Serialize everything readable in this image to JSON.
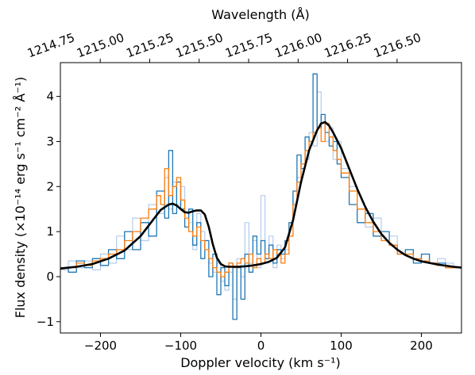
{
  "chart_data": {
    "type": "line",
    "xlabel": "Doppler velocity (km s⁻¹)",
    "ylabel": "Flux density (×10⁻¹⁴ erg s⁻¹ cm⁻² Å⁻¹)",
    "top_xlabel": "Wavelength (Å)",
    "xlim": [
      -250,
      250
    ],
    "ylim": [
      -1.25,
      4.75
    ],
    "xticks": [
      -200,
      -100,
      0,
      100,
      200
    ],
    "xtick_labels": [
      "−200",
      "−100",
      "0",
      "100",
      "200"
    ],
    "yticks": [
      -1,
      0,
      1,
      2,
      3,
      4
    ],
    "ytick_labels": [
      "−1",
      "0",
      "1",
      "2",
      "3",
      "4"
    ],
    "top_xticks": [
      -262.0,
      -200.3,
      -138.7,
      -77.0,
      -15.3,
      46.4,
      108.0,
      169.7
    ],
    "top_xtick_labels": [
      "1214.75",
      "1215.00",
      "1215.25",
      "1215.50",
      "1215.75",
      "1216.00",
      "1216.25",
      "1216.50"
    ],
    "grid": false,
    "legend": "none",
    "series": [
      {
        "color": "#aec7e8",
        "style": "steps-light",
        "x": [
          -250,
          -240,
          -230,
          -220,
          -210,
          -200,
          -190,
          -180,
          -170,
          -160,
          -150,
          -140,
          -130,
          -120,
          -115,
          -110,
          -105,
          -100,
          -95,
          -90,
          -85,
          -80,
          -75,
          -70,
          -65,
          -60,
          -55,
          -50,
          -45,
          -40,
          -35,
          -30,
          -25,
          -20,
          -15,
          -10,
          -5,
          0,
          5,
          10,
          15,
          20,
          25,
          30,
          35,
          40,
          45,
          50,
          55,
          60,
          65,
          70,
          75,
          80,
          85,
          90,
          95,
          100,
          110,
          120,
          130,
          140,
          150,
          160,
          170,
          180,
          190,
          200,
          210,
          220,
          230,
          240,
          250
        ],
        "y": [
          0.15,
          0.35,
          0.2,
          0.35,
          0.15,
          0.5,
          0.3,
          0.9,
          0.6,
          1.3,
          0.8,
          1.6,
          1.4,
          2.2,
          1.5,
          2.1,
          1.6,
          2.0,
          1.1,
          1.2,
          0.6,
          1.4,
          1.0,
          0.8,
          0.3,
          0.1,
          0.3,
          -0.1,
          -0.3,
          0.1,
          -0.5,
          0.4,
          0.0,
          1.2,
          0.3,
          0.8,
          0.2,
          1.8,
          0.5,
          0.9,
          0.2,
          0.7,
          0.4,
          0.6,
          0.9,
          1.6,
          2.2,
          2.5,
          2.6,
          3.2,
          2.9,
          4.1,
          3.4,
          3.0,
          3.3,
          2.6,
          3.0,
          2.4,
          2.0,
          1.5,
          1.1,
          1.3,
          0.8,
          0.9,
          0.5,
          0.6,
          0.4,
          0.5,
          0.3,
          0.4,
          0.3,
          0.2,
          0.2
        ]
      },
      {
        "color": "#1f77b4",
        "style": "steps",
        "x": [
          -250,
          -240,
          -230,
          -220,
          -210,
          -200,
          -190,
          -180,
          -170,
          -160,
          -150,
          -140,
          -130,
          -120,
          -115,
          -110,
          -105,
          -100,
          -95,
          -90,
          -85,
          -80,
          -75,
          -70,
          -65,
          -60,
          -55,
          -50,
          -45,
          -40,
          -35,
          -30,
          -25,
          -20,
          -15,
          -10,
          -5,
          0,
          5,
          10,
          15,
          20,
          25,
          30,
          35,
          40,
          45,
          50,
          55,
          60,
          65,
          70,
          75,
          80,
          85,
          90,
          95,
          100,
          110,
          120,
          130,
          140,
          150,
          160,
          170,
          180,
          190,
          200,
          210,
          220,
          230,
          240,
          250
        ],
        "y": [
          0.2,
          0.1,
          0.35,
          0.2,
          0.4,
          0.25,
          0.6,
          0.4,
          1.0,
          0.6,
          1.2,
          0.9,
          1.9,
          1.3,
          2.8,
          1.4,
          2.1,
          1.5,
          1.1,
          1.5,
          0.7,
          1.2,
          0.4,
          0.8,
          0.0,
          0.5,
          -0.4,
          0.2,
          -0.2,
          0.3,
          -0.95,
          0.2,
          -0.5,
          0.5,
          0.1,
          0.9,
          0.5,
          0.8,
          0.4,
          0.7,
          0.3,
          0.6,
          0.5,
          0.8,
          1.2,
          1.9,
          2.7,
          2.4,
          3.1,
          3.0,
          4.5,
          3.3,
          3.6,
          3.2,
          2.9,
          3.0,
          2.5,
          2.2,
          1.6,
          1.2,
          1.4,
          0.9,
          1.0,
          0.7,
          0.5,
          0.6,
          0.3,
          0.5,
          0.3,
          0.3,
          0.2,
          0.2,
          0.2
        ]
      },
      {
        "color": "#ff7f0e",
        "style": "steps",
        "x": [
          -250,
          -240,
          -230,
          -220,
          -210,
          -200,
          -190,
          -180,
          -170,
          -160,
          -150,
          -140,
          -130,
          -125,
          -120,
          -115,
          -110,
          -105,
          -100,
          -95,
          -90,
          -85,
          -80,
          -75,
          -70,
          -65,
          -60,
          -55,
          -50,
          -45,
          -40,
          -35,
          -30,
          -25,
          -20,
          -15,
          -10,
          -5,
          0,
          5,
          10,
          15,
          20,
          25,
          30,
          35,
          40,
          45,
          50,
          55,
          60,
          65,
          70,
          75,
          80,
          85,
          90,
          95,
          100,
          110,
          120,
          130,
          140,
          150,
          160,
          170,
          180,
          190,
          200,
          210,
          220,
          230,
          240,
          250
        ],
        "y": [
          0.2,
          0.2,
          0.3,
          0.25,
          0.35,
          0.4,
          0.5,
          0.6,
          0.8,
          1.0,
          1.3,
          1.5,
          1.8,
          1.6,
          2.4,
          1.8,
          2.0,
          2.2,
          1.7,
          1.3,
          1.0,
          0.9,
          1.1,
          0.8,
          0.6,
          0.4,
          0.2,
          0.1,
          0.0,
          0.1,
          0.3,
          0.2,
          0.3,
          0.4,
          0.3,
          0.5,
          0.2,
          0.4,
          0.3,
          0.5,
          0.4,
          0.6,
          0.5,
          0.3,
          0.5,
          0.9,
          1.6,
          2.1,
          2.5,
          2.8,
          3.0,
          3.2,
          3.3,
          3.0,
          3.4,
          3.1,
          2.8,
          2.6,
          2.3,
          1.9,
          1.5,
          1.2,
          1.0,
          0.8,
          0.7,
          0.5,
          0.5,
          0.4,
          0.35,
          0.3,
          0.25,
          0.2,
          0.2,
          0.2
        ]
      },
      {
        "color": "#000000",
        "style": "model",
        "x": [
          -250,
          -230,
          -210,
          -190,
          -170,
          -150,
          -135,
          -125,
          -115,
          -110,
          -105,
          -100,
          -95,
          -90,
          -85,
          -80,
          -75,
          -70,
          -65,
          -60,
          -55,
          -50,
          -45,
          -40,
          -30,
          -20,
          -10,
          0,
          10,
          20,
          30,
          40,
          50,
          60,
          70,
          75,
          80,
          85,
          90,
          100,
          110,
          120,
          130,
          140,
          150,
          160,
          170,
          180,
          190,
          200,
          220,
          240,
          250
        ],
        "y": [
          0.18,
          0.22,
          0.28,
          0.4,
          0.58,
          0.9,
          1.25,
          1.48,
          1.6,
          1.62,
          1.58,
          1.5,
          1.43,
          1.42,
          1.45,
          1.47,
          1.47,
          1.38,
          1.1,
          0.72,
          0.42,
          0.28,
          0.23,
          0.22,
          0.22,
          0.23,
          0.25,
          0.28,
          0.33,
          0.42,
          0.65,
          1.25,
          2.1,
          2.8,
          3.25,
          3.4,
          3.43,
          3.35,
          3.2,
          2.85,
          2.4,
          1.95,
          1.55,
          1.22,
          0.95,
          0.75,
          0.6,
          0.48,
          0.4,
          0.34,
          0.27,
          0.22,
          0.2
        ]
      }
    ]
  }
}
